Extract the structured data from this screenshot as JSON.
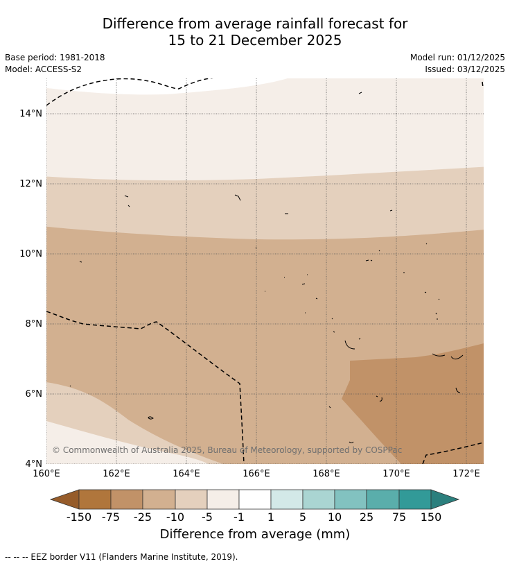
{
  "title": {
    "line1": "Difference from average rainfall forecast for",
    "line2": "15 to 21 December 2025"
  },
  "meta": {
    "base_period": "Base period: 1981-2018",
    "model": "Model: ACCESS-S2",
    "model_run": "Model run: 01/12/2025",
    "issued": "Issued: 03/12/2025"
  },
  "map": {
    "lon_labels": [
      "160°E",
      "162°E",
      "164°E",
      "166°E",
      "168°E",
      "170°E",
      "172°E"
    ],
    "lat_labels": [
      "4°N",
      "6°N",
      "8°N",
      "10°N",
      "12°N",
      "14°N"
    ],
    "copyright": "© Commonwealth of Australia 2025, Bureau of Meteorology, supported by COSPPac"
  },
  "colorbar": {
    "labels": [
      "-150",
      "-75",
      "-25",
      "-10",
      "-5",
      "-1",
      "1",
      "5",
      "10",
      "25",
      "75",
      "150"
    ],
    "colors": {
      "below_150": "#965c2a",
      "n150_75": "#b0763c",
      "n75_25": "#c19268",
      "n25_10": "#d2b090",
      "n10_5": "#e4d0bd",
      "n5_1": "#f5eee8",
      "n1_1": "#ffffff",
      "p1_5": "#d3e9e8",
      "p5_10": "#aad5d2",
      "p10_25": "#82c2c0",
      "p25_75": "#5aaeab",
      "p75_150": "#329a98",
      "above_150": "#2b7f7d"
    },
    "title": "Difference from average (mm)"
  },
  "legend_note": "--  --  -- EEZ border V11 (Flanders Marine Institute, 2019)."
}
